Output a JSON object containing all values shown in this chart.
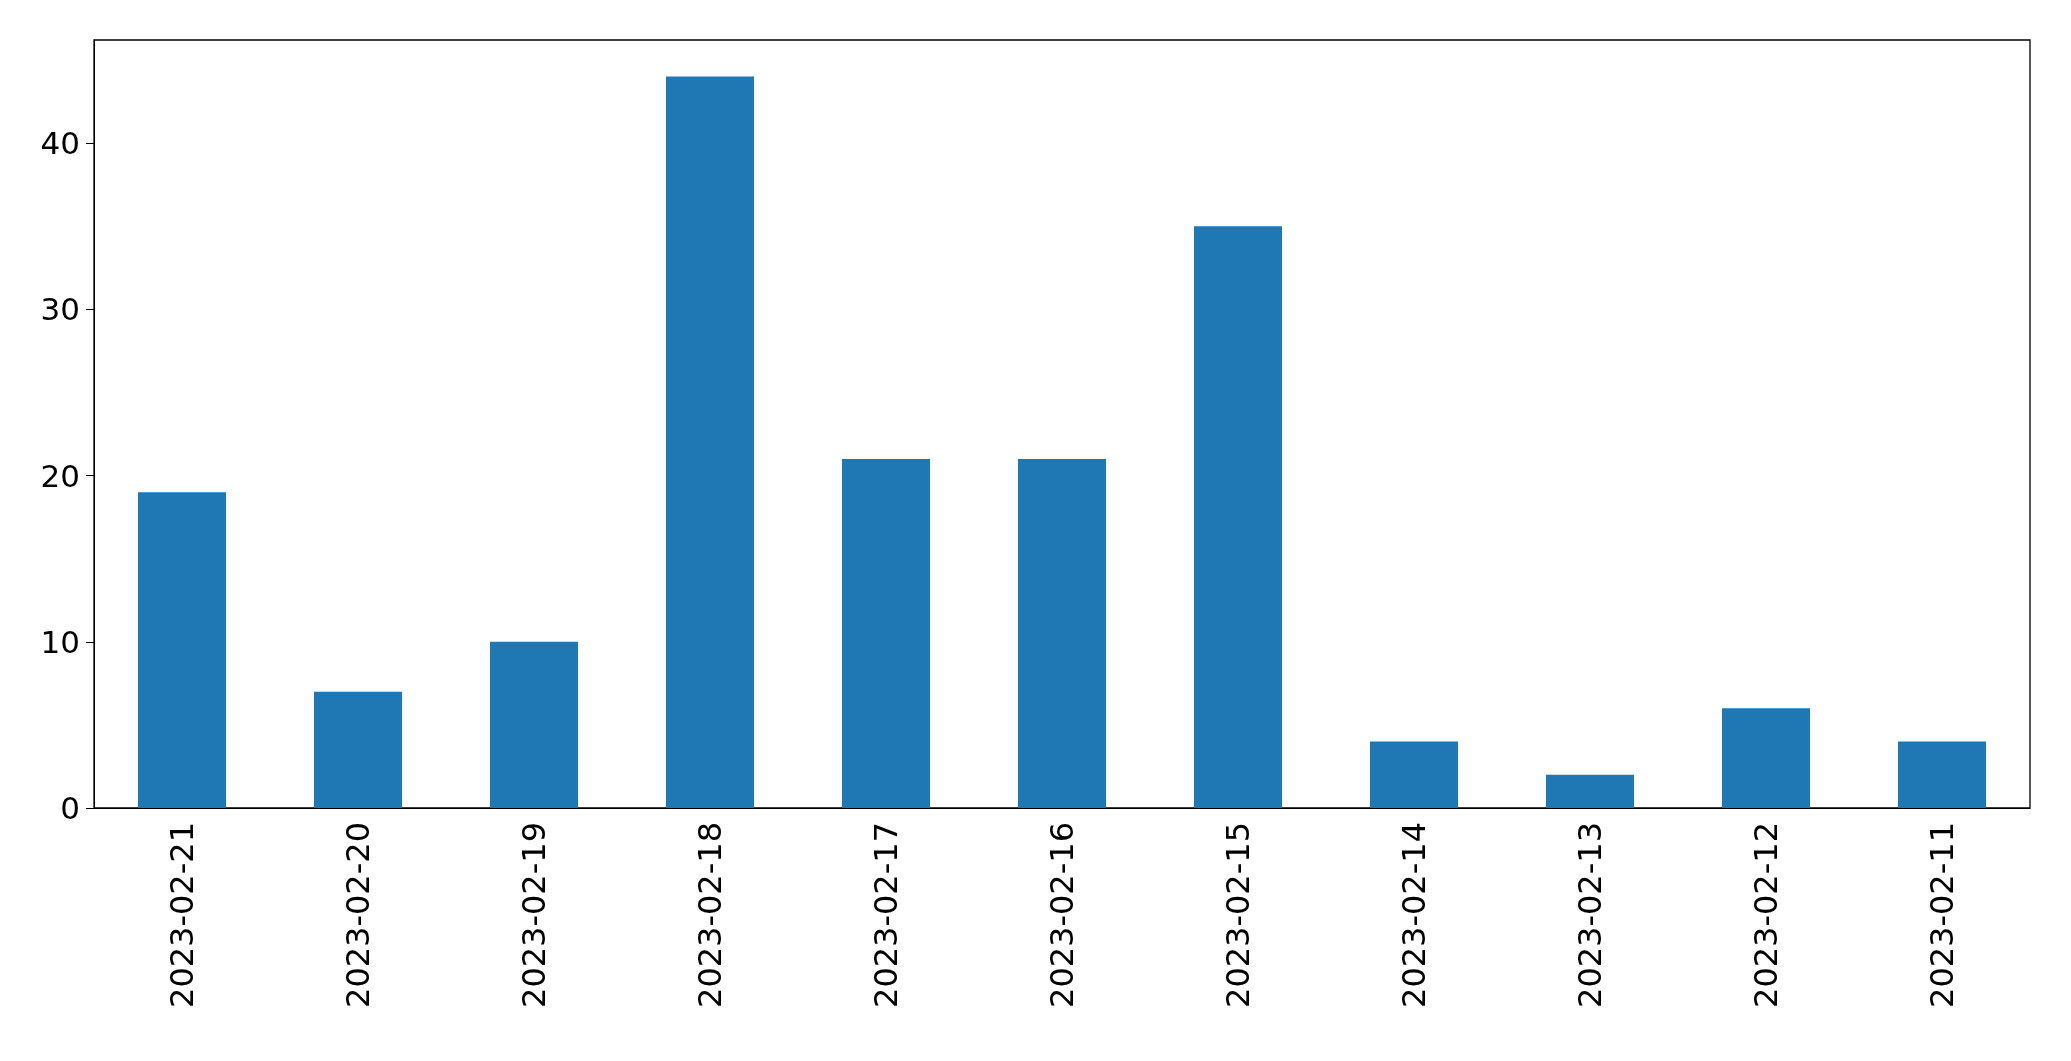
{
  "chart_data": {
    "type": "bar",
    "categories": [
      "2023-02-21",
      "2023-02-20",
      "2023-02-19",
      "2023-02-18",
      "2023-02-17",
      "2023-02-16",
      "2023-02-15",
      "2023-02-14",
      "2023-02-13",
      "2023-02-12",
      "2023-02-11"
    ],
    "values": [
      19,
      7,
      10,
      44,
      21,
      21,
      35,
      4,
      2,
      6,
      4
    ],
    "color": "#1f77b4",
    "ylim": [
      0,
      46.2
    ],
    "yticks": [
      0,
      10,
      20,
      30,
      40
    ]
  }
}
